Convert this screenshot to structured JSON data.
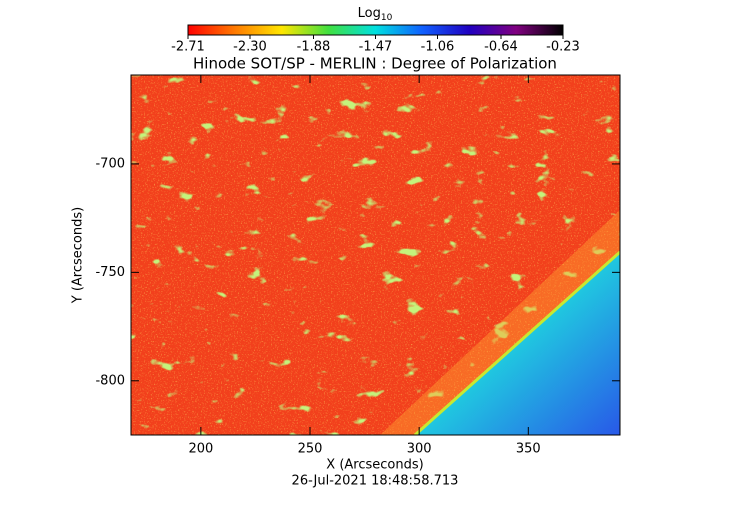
{
  "chart_data": {
    "type": "image",
    "title": "Hinode SOT/SP - MERLIN : Degree of Polarization",
    "x_label": "X (Arcseconds)",
    "y_label": "Y (Arcseconds)",
    "footer": "26-Jul-2021  18:48:58.713",
    "xlim": [
      168,
      392
    ],
    "ylim": [
      -825,
      -659
    ],
    "xticks": [
      200,
      250,
      300,
      350
    ],
    "yticks": [
      -700,
      -750,
      -800
    ],
    "colorbar_label": "Log",
    "colorbar_label_sub": "10",
    "clim": [
      -2.71,
      -0.23
    ],
    "cticks": [
      -2.71,
      {
        "value": -2.3,
        "label": "-2.30"
      },
      -1.88,
      -1.47,
      -1.06,
      -0.64,
      -0.23
    ],
    "colormap": [
      "#ff0000",
      "#ff7a00",
      "#ffe600",
      "#40e040",
      "#00e0e0",
      "#1060ff",
      "#2000c0",
      "#800080",
      "#000000"
    ]
  }
}
